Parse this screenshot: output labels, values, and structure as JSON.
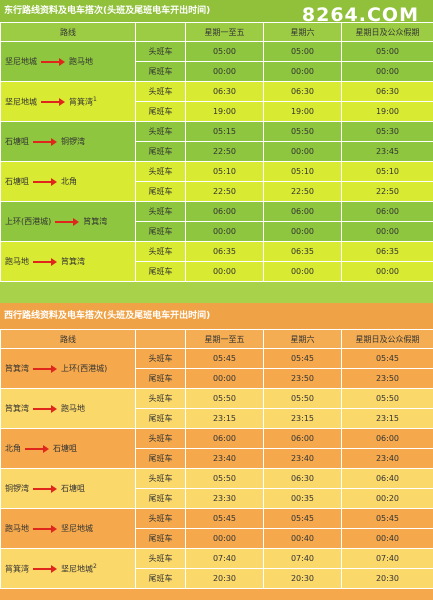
{
  "watermark": "8264.COM",
  "sections": [
    {
      "title": "东行路线资料及电车搭次(头班及尾班电车开出时间)",
      "headers": [
        "路线",
        "",
        "星期一至五",
        "星期六",
        "星期日及公众假期"
      ],
      "routes": [
        {
          "from": "坚尼地城",
          "to": "跑马地",
          "sup": "",
          "rows": [
            [
              "头班车",
              "05:00",
              "05:00",
              "05:00"
            ],
            [
              "尾班车",
              "00:00",
              "00:00",
              "00:00"
            ]
          ]
        },
        {
          "from": "坚尼地城",
          "to": "筲箕湾",
          "sup": "1",
          "rows": [
            [
              "头班车",
              "06:30",
              "06:30",
              "06:30"
            ],
            [
              "尾班车",
              "19:00",
              "19:00",
              "19:00"
            ]
          ]
        },
        {
          "from": "石塘咀",
          "to": "铜锣湾",
          "sup": "",
          "rows": [
            [
              "头班车",
              "05:15",
              "05:50",
              "05:30"
            ],
            [
              "尾班车",
              "22:50",
              "00:00",
              "23:45"
            ]
          ]
        },
        {
          "from": "石塘咀",
          "to": "北角",
          "sup": "",
          "rows": [
            [
              "头班车",
              "05:10",
              "05:10",
              "05:10"
            ],
            [
              "尾班车",
              "22:50",
              "22:50",
              "22:50"
            ]
          ]
        },
        {
          "from": "上环(西港城)",
          "to": "筲箕湾",
          "sup": "",
          "rows": [
            [
              "头班车",
              "06:00",
              "06:00",
              "06:00"
            ],
            [
              "尾班车",
              "00:00",
              "00:00",
              "00:00"
            ]
          ]
        },
        {
          "from": "跑马地",
          "to": "筲箕湾",
          "sup": "",
          "rows": [
            [
              "头班车",
              "06:35",
              "06:35",
              "06:35"
            ],
            [
              "尾班车",
              "00:00",
              "00:00",
              "00:00"
            ]
          ]
        }
      ]
    },
    {
      "title": "西行路线资料及电车搭次(头班及尾班电车开出时间)",
      "headers": [
        "路线",
        "",
        "星期一至五",
        "星期六",
        "星期日及公众假期"
      ],
      "routes": [
        {
          "from": "筲箕湾",
          "to": "上环(西港城)",
          "sup": "",
          "rows": [
            [
              "头班车",
              "05:45",
              "05:45",
              "05:45"
            ],
            [
              "尾班车",
              "00:00",
              "23:50",
              "23:50"
            ]
          ]
        },
        {
          "from": "筲箕湾",
          "to": "跑马地",
          "sup": "",
          "rows": [
            [
              "头班车",
              "05:50",
              "05:50",
              "05:50"
            ],
            [
              "尾班车",
              "23:15",
              "23:15",
              "23:15"
            ]
          ]
        },
        {
          "from": "北角",
          "to": "石塘咀",
          "sup": "",
          "rows": [
            [
              "头班车",
              "06:00",
              "06:00",
              "06:00"
            ],
            [
              "尾班车",
              "23:40",
              "23:40",
              "23:40"
            ]
          ]
        },
        {
          "from": "铜锣湾",
          "to": "石塘咀",
          "sup": "",
          "rows": [
            [
              "头班车",
              "05:50",
              "06:30",
              "06:40"
            ],
            [
              "尾班车",
              "23:30",
              "00:35",
              "00:20"
            ]
          ]
        },
        {
          "from": "跑马地",
          "to": "坚尼地城",
          "sup": "",
          "rows": [
            [
              "头班车",
              "05:45",
              "05:45",
              "05:45"
            ],
            [
              "尾班车",
              "00:00",
              "00:40",
              "00:40"
            ]
          ]
        },
        {
          "from": "筲箕湾",
          "to": "坚尼地城",
          "sup": "2",
          "rows": [
            [
              "头班车",
              "07:40",
              "07:40",
              "07:40"
            ],
            [
              "尾班车",
              "20:30",
              "20:30",
              "20:30"
            ]
          ]
        }
      ]
    }
  ]
}
